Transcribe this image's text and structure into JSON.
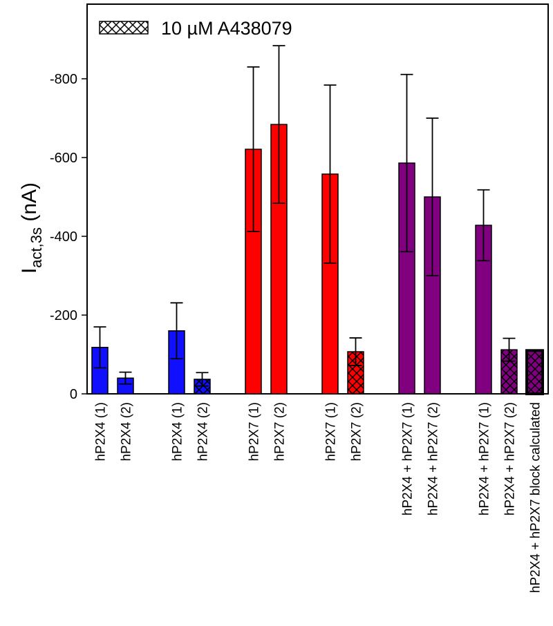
{
  "chart_data": {
    "type": "bar",
    "title": "",
    "xlabel": "",
    "ylabel": {
      "main": "I",
      "subscript": "act,3s",
      "unit": " (nA)"
    },
    "ylim": [
      0,
      -900
    ],
    "yticks": [
      0,
      -200,
      -400,
      -600,
      -800
    ],
    "ytick_labels": [
      "0",
      "-200",
      "-400",
      "-600",
      "-800"
    ],
    "grid": false,
    "legend": {
      "position": "top-left",
      "entries": [
        {
          "label": "10 µM A438079",
          "pattern": "crosshatch"
        }
      ]
    },
    "colors": {
      "hP2X4": "#1010ff",
      "hP2X7": "#ff0000",
      "hP2X4+hP2X7": "#800080"
    },
    "categories": [
      "hP2X4 (1)",
      "hP2X4 (2)",
      "hP2X4 (1)",
      "hP2X4 (2)",
      "hP2X7 (1)",
      "hP2X7 (2)",
      "hP2X7 (1)",
      "hP2X7 (2)",
      "hP2X4 + hP2X7 (1)",
      "hP2X4 + hP2X7 (2)",
      "hP2X4 + hP2X7 (1)",
      "hP2X4 + hP2X7 (2)",
      "hP2X4 + hP2X7 block calculated"
    ],
    "bars": [
      {
        "label": "hP2X4 (1)",
        "value": -118,
        "err": 52,
        "color": "#1010ff",
        "hatched": false,
        "group": 0
      },
      {
        "label": "hP2X4 (2)",
        "value": -40,
        "err": 15,
        "color": "#1010ff",
        "hatched": false,
        "group": 0
      },
      {
        "label": "hP2X4 (1)",
        "value": -160,
        "err": 71,
        "color": "#1010ff",
        "hatched": false,
        "group": 1
      },
      {
        "label": "hP2X4 (2)",
        "value": -37,
        "err": 17,
        "color": "#1010ff",
        "hatched": true,
        "group": 1
      },
      {
        "label": "hP2X7 (1)",
        "value": -621,
        "err": 209,
        "color": "#ff0000",
        "hatched": false,
        "group": 2
      },
      {
        "label": "hP2X7 (2)",
        "value": -684,
        "err": 200,
        "color": "#ff0000",
        "hatched": false,
        "group": 2
      },
      {
        "label": "hP2X7 (1)",
        "value": -558,
        "err": 226,
        "color": "#ff0000",
        "hatched": false,
        "group": 3
      },
      {
        "label": "hP2X7 (2)",
        "value": -107,
        "err": 35,
        "color": "#ff0000",
        "hatched": true,
        "group": 3
      },
      {
        "label": "hP2X4 + hP2X7 (1)",
        "value": -586,
        "err": 225,
        "color": "#800080",
        "hatched": false,
        "group": 4
      },
      {
        "label": "hP2X4 + hP2X7 (2)",
        "value": -500,
        "err": 200,
        "color": "#800080",
        "hatched": false,
        "group": 4
      },
      {
        "label": "hP2X4 + hP2X7 (1)",
        "value": -428,
        "err": 90,
        "color": "#800080",
        "hatched": false,
        "group": 5
      },
      {
        "label": "hP2X4 + hP2X7 (2)",
        "value": -112,
        "err": 29,
        "color": "#800080",
        "hatched": true,
        "group": 5
      },
      {
        "label": "hP2X4 + hP2X7 block calculated",
        "value": -110,
        "err": null,
        "color": "#800080",
        "hatched": true,
        "thick_border": true,
        "group": 5
      }
    ]
  }
}
